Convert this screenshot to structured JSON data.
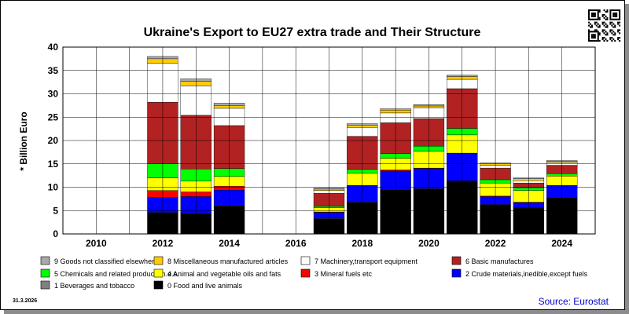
{
  "chart_data": {
    "type": "bar",
    "stacked": true,
    "title": "Ukraine's Export to EU27 extra trade and Their Structure",
    "ylabel": "* Billion Euro",
    "xlabel": "",
    "ylim": [
      0,
      40
    ],
    "yticks": [
      0,
      5,
      10,
      15,
      20,
      25,
      30,
      35,
      40
    ],
    "xlim": [
      2009,
      2025
    ],
    "xticks": [
      2010,
      2012,
      2014,
      2016,
      2018,
      2020,
      2022,
      2024
    ],
    "grid": true,
    "legend_position": "bottom",
    "categories": [
      2012,
      2013,
      2014,
      2017,
      2018,
      2019,
      2020,
      2021,
      2022,
      2023,
      2024
    ],
    "series": [
      {
        "name": "0 Food and live animals",
        "color": "#000000",
        "values": [
          4.5,
          4.3,
          5.9,
          3.2,
          6.7,
          9.4,
          9.6,
          11.3,
          6.2,
          5.5,
          7.6
        ]
      },
      {
        "name": "1 Beverages and tobacco",
        "color": "#808080",
        "values": [
          0.1,
          0.1,
          0.1,
          0.1,
          0.1,
          0.1,
          0.1,
          0.1,
          0.1,
          0.1,
          0.1
        ]
      },
      {
        "name": "2 Crude materials,inedible,except fuels",
        "color": "#0000ff",
        "values": [
          3.2,
          3.6,
          3.4,
          1.3,
          3.5,
          4.0,
          4.3,
          5.8,
          1.7,
          1.1,
          2.6
        ]
      },
      {
        "name": "3 Mineral fuels etc",
        "color": "#ff0000",
        "values": [
          1.5,
          1.0,
          0.8,
          0.1,
          0.1,
          0.2,
          0.1,
          0.1,
          0.1,
          0.1,
          0.1
        ]
      },
      {
        "name": "4 Animal and vegetable oils and fats",
        "color": "#ffff00",
        "values": [
          2.7,
          2.3,
          2.1,
          0.9,
          2.6,
          2.5,
          3.6,
          3.9,
          2.8,
          2.5,
          2.0
        ]
      },
      {
        "name": "5 Chemicals and related products,n.e.s.",
        "color": "#00ff00",
        "values": [
          3.0,
          2.6,
          1.7,
          0.3,
          0.8,
          1.0,
          1.1,
          1.4,
          0.7,
          0.6,
          0.5
        ]
      },
      {
        "name": "6 Basic manufactures",
        "color": "#b22222",
        "values": [
          13.2,
          11.5,
          9.2,
          2.8,
          7.1,
          6.6,
          5.9,
          8.5,
          2.5,
          1.0,
          1.8
        ]
      },
      {
        "name": "7 Machinery,transport equipment",
        "color": "#ffffff",
        "values": [
          8.3,
          6.3,
          3.7,
          0.6,
          1.9,
          2.1,
          2.3,
          2.0,
          0.6,
          0.5,
          0.6
        ]
      },
      {
        "name": "8 Miscellaneous manufactured articles",
        "color": "#ffcc00",
        "values": [
          1.0,
          1.0,
          0.6,
          0.3,
          0.5,
          0.6,
          0.4,
          0.6,
          0.3,
          0.4,
          0.3
        ]
      },
      {
        "name": "9 Goods not classified elsewhere",
        "color": "#a9a9a9",
        "values": [
          0.5,
          0.5,
          0.5,
          0.2,
          0.3,
          0.3,
          0.3,
          0.3,
          0.2,
          0.2,
          0.1
        ]
      }
    ],
    "legend_order": [
      9,
      8,
      7,
      6,
      5,
      4,
      3,
      2,
      1,
      0
    ]
  },
  "footer": {
    "date": "31.3.2026",
    "source": "Source: Eurostat"
  },
  "colors": {
    "grid": "#000000",
    "plot_background": "#ffffff",
    "source_text": "#0000cc",
    "shadow": "#8c8c8c"
  },
  "qr_icon": "qr-code-icon"
}
